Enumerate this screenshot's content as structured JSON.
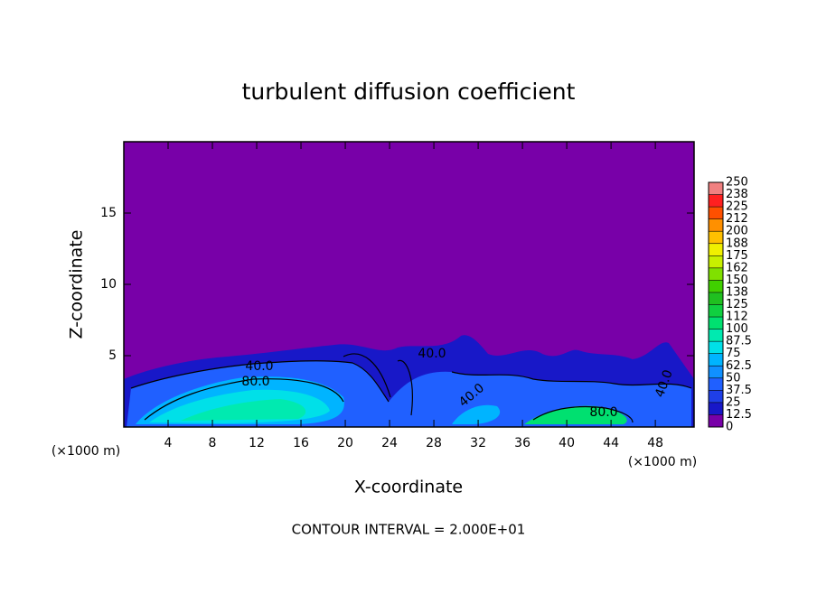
{
  "chart_data": {
    "type": "contour",
    "title": "turbulent diffusion coefficient",
    "x_label": "X-coordinate",
    "y_label": "Z-coordinate",
    "x_unit": "(×1000 m)",
    "annotation": "CONTOUR INTERVAL = 2.000E+01",
    "xlim": [
      0,
      51.5
    ],
    "xticks": [
      4,
      8,
      12,
      16,
      20,
      24,
      28,
      32,
      36,
      40,
      44,
      48
    ],
    "ylim": [
      0,
      20
    ],
    "yticks": [
      5,
      10,
      15
    ],
    "contour_labels": [
      {
        "value": 40,
        "label": "40.0"
      },
      {
        "value": 80,
        "label": "80.0"
      },
      {
        "value": 40,
        "label": "40.0"
      },
      {
        "value": 40,
        "label": "40.0"
      },
      {
        "value": 80,
        "label": "80.0"
      },
      {
        "value": 40,
        "label": "40.0"
      }
    ],
    "cblim": [
      0,
      250
    ],
    "cbticks": [
      0,
      12.5,
      25,
      37.5,
      50,
      62.5,
      75,
      87.5,
      100,
      {
        "value": 112.5,
        "label": "112"
      },
      125,
      {
        "value": 137.5,
        "label": "138"
      },
      150,
      {
        "value": 162.5,
        "label": "162"
      },
      175,
      {
        "value": 187.5,
        "label": "188"
      },
      200,
      {
        "value": 212.5,
        "label": "212"
      },
      225,
      {
        "value": 237.5,
        "label": "238"
      },
      250
    ],
    "colors": [
      "#7800a8",
      "#1818c8",
      "#1f3fe8",
      "#2060ff",
      "#1090ff",
      "#00b4ff",
      "#00e0e8",
      "#00eab0",
      "#00e070",
      "#10d040",
      "#20c020",
      "#40d000",
      "#80e000",
      "#c8f000",
      "#f0f000",
      "#ffc000",
      "#ff9000",
      "#ff5000",
      "#ff2020",
      "#f08080"
    ]
  }
}
